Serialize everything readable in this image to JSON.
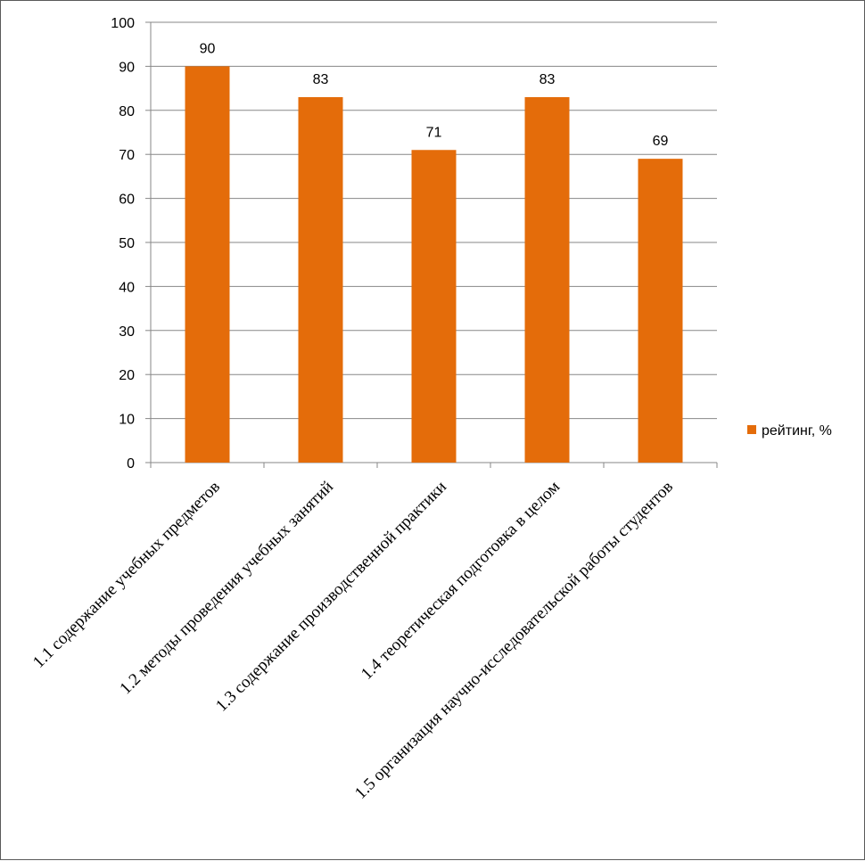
{
  "chart_data": {
    "type": "bar",
    "categories": [
      "1.1 содержание учебных предметов",
      "1.2 методы проведения учебных занятий",
      "1.3 содержание производственной практики",
      "1.4 теоретическая подготовка в целом",
      "1.5 организация научно-исследовательской работы студентов"
    ],
    "series": [
      {
        "name": "рейтинг, %",
        "values": [
          90,
          83,
          71,
          83,
          69
        ],
        "color": "#E46C0A"
      }
    ],
    "ylim": [
      0,
      100
    ],
    "yticks": [
      0,
      10,
      20,
      30,
      40,
      50,
      60,
      70,
      80,
      90,
      100
    ],
    "grid": true,
    "legend": "right",
    "data_labels": true,
    "xlabel": "",
    "ylabel": "",
    "title": ""
  }
}
